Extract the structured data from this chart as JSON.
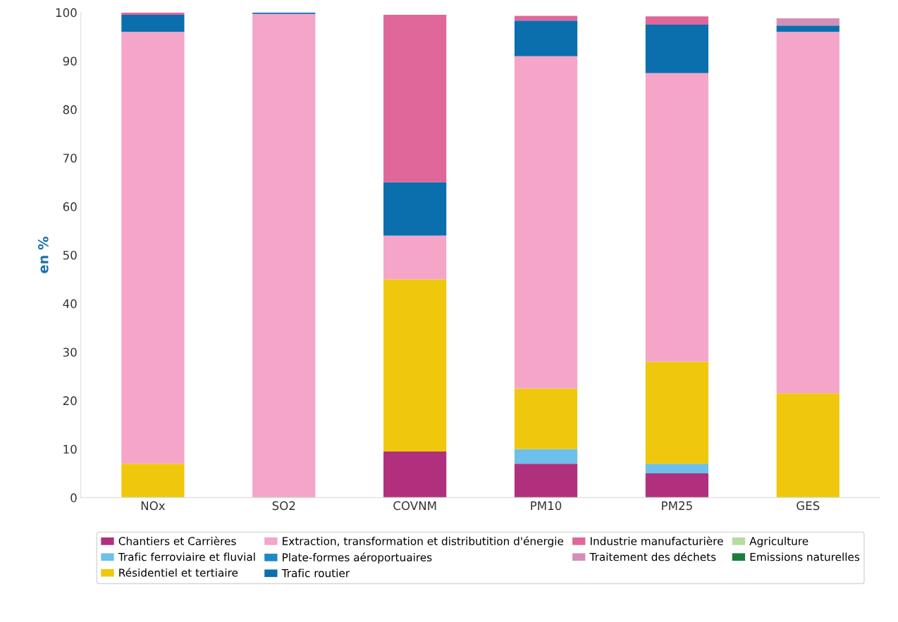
{
  "chart_data": {
    "type": "bar",
    "stacked": true,
    "ylabel": "en %",
    "categories": [
      "NOx",
      "SO2",
      "COVNM",
      "PM10",
      "PM25",
      "GES"
    ],
    "ylim": [
      0,
      100
    ],
    "yticks": [
      0,
      10,
      20,
      30,
      40,
      50,
      60,
      70,
      80,
      90,
      100
    ],
    "grid": false,
    "legend": "bottom",
    "series": [
      {
        "name": "Chantiers et Carrières",
        "color": "#b0307e",
        "values": [
          0,
          0,
          9.5,
          7,
          5,
          0
        ]
      },
      {
        "name": "Trafic ferroviaire et fluvial",
        "color": "#6cc0ea",
        "values": [
          0,
          0,
          0,
          3,
          2,
          0
        ]
      },
      {
        "name": "Résidentiel et tertiaire",
        "color": "#efc80e",
        "values": [
          7,
          0,
          35.5,
          12.5,
          21,
          21.5
        ]
      },
      {
        "name": "Extraction, transformation et distributition d'énergie",
        "color": "#f4a5c8",
        "values": [
          89,
          99.7,
          9,
          68.5,
          59.5,
          74.5
        ]
      },
      {
        "name": "Plate-formes aéroportuaires",
        "color": "#1e88c8",
        "values": [
          0,
          0,
          0,
          0,
          0,
          0
        ]
      },
      {
        "name": "Trafic routier",
        "color": "#0b6fae",
        "values": [
          3.5,
          0.3,
          11,
          7.3,
          10,
          1.3
        ]
      },
      {
        "name": "Industrie manufacturière",
        "color": "#e0679a",
        "values": [
          0.5,
          0,
          34.5,
          1,
          1.7,
          0
        ]
      },
      {
        "name": "Traitement des déchets",
        "color": "#d48fb8",
        "values": [
          0,
          0,
          0,
          0,
          0,
          1.5
        ]
      },
      {
        "name": "Agriculture",
        "color": "#b6dca0",
        "values": [
          0,
          0,
          0,
          0,
          0,
          0
        ]
      },
      {
        "name": "Emissions naturelles",
        "color": "#1a7d3c",
        "values": [
          0,
          0,
          0,
          0,
          0,
          0
        ]
      }
    ]
  }
}
